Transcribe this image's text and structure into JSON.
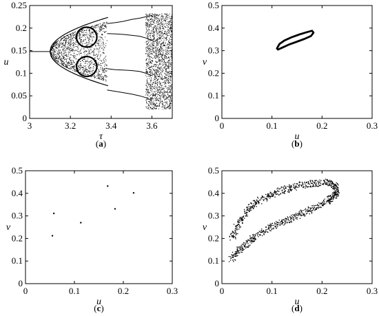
{
  "chart_data": [
    {
      "id": "a",
      "type": "scatter",
      "caption_prefix": "(",
      "caption_letter": "a",
      "caption_suffix": ")",
      "xlabel": "τ",
      "ylabel": "u",
      "xlim": [
        3,
        3.7
      ],
      "ylim": [
        0,
        0.25
      ],
      "xticks": [
        3,
        3.2,
        3.4,
        3.6
      ],
      "yticks": [
        0,
        0.05,
        0.1,
        0.15,
        0.2,
        0.25
      ],
      "xtick_labels": [
        "3",
        "3.2",
        "3.4",
        "3.6"
      ],
      "ytick_labels": [
        "0",
        "0.05",
        "0.1",
        "0.15",
        "0.2",
        "0.25"
      ],
      "description_series": {
        "steady_state": {
          "x": [
            3.0,
            3.1
          ],
          "u": 0.148
        },
        "branches": [
          {
            "x": [
              3.38,
              3.42,
              3.46,
              3.5,
              3.54,
              3.57,
              3.6
            ],
            "u": [
              0.21,
              0.212,
              0.215,
              0.219,
              0.222,
              0.225,
              0.228
            ]
          },
          {
            "x": [
              3.38,
              3.42,
              3.46,
              3.5,
              3.54,
              3.57,
              3.6
            ],
            "u": [
              0.188,
              0.187,
              0.186,
              0.184,
              0.182,
              0.178,
              0.172
            ]
          },
          {
            "x": [
              3.38,
              3.42,
              3.46,
              3.5,
              3.54,
              3.57,
              3.6
            ],
            "u": [
              0.11,
              0.108,
              0.107,
              0.106,
              0.104,
              0.1,
              0.095
            ]
          },
          {
            "x": [
              3.38,
              3.42,
              3.46,
              3.5,
              3.54,
              3.57,
              3.6
            ],
            "u": [
              0.063,
              0.06,
              0.057,
              0.054,
              0.05,
              0.046,
              0.04
            ]
          }
        ],
        "chaotic_band": {
          "x": [
            3.57,
            3.7
          ],
          "u": [
            0.02,
            0.232
          ]
        }
      }
    },
    {
      "id": "b",
      "type": "line",
      "caption_prefix": "(",
      "caption_letter": "b",
      "caption_suffix": ")",
      "xlabel": "u",
      "ylabel": "v",
      "xlim": [
        0,
        0.3
      ],
      "ylim": [
        0,
        0.5
      ],
      "xticks": [
        0,
        0.1,
        0.2,
        0.3
      ],
      "yticks": [
        0,
        0.1,
        0.2,
        0.3,
        0.4,
        0.5
      ],
      "xtick_labels": [
        "0",
        "0.1",
        "0.2",
        "0.3"
      ],
      "ytick_labels": [
        "0",
        "0.1",
        "0.2",
        "0.3",
        "0.4",
        "0.5"
      ],
      "x": [
        0.11,
        0.115,
        0.125,
        0.14,
        0.155,
        0.17,
        0.18,
        0.183,
        0.178,
        0.165,
        0.15,
        0.135,
        0.122,
        0.112,
        0.11
      ],
      "y": [
        0.31,
        0.33,
        0.345,
        0.36,
        0.372,
        0.382,
        0.388,
        0.38,
        0.365,
        0.352,
        0.34,
        0.328,
        0.315,
        0.305,
        0.31
      ]
    },
    {
      "id": "c",
      "type": "scatter",
      "caption_prefix": "(",
      "caption_letter": "c",
      "caption_suffix": ")",
      "xlabel": "u",
      "ylabel": "v",
      "xlim": [
        0,
        0.3
      ],
      "ylim": [
        0,
        0.5
      ],
      "xticks": [
        0,
        0.1,
        0.2,
        0.3
      ],
      "yticks": [
        0,
        0.1,
        0.2,
        0.3,
        0.4,
        0.5
      ],
      "xtick_labels": [
        "0",
        "0.1",
        "0.2",
        "0.3"
      ],
      "ytick_labels": [
        "0",
        "0.1",
        "0.2",
        "0.3",
        "0.4",
        "0.5"
      ],
      "x": [
        0.055,
        0.058,
        0.113,
        0.168,
        0.183,
        0.221
      ],
      "y": [
        0.212,
        0.311,
        0.27,
        0.432,
        0.331,
        0.402
      ]
    },
    {
      "id": "d",
      "type": "scatter",
      "caption_prefix": "(",
      "caption_letter": "d",
      "caption_suffix": ")",
      "xlabel": "u",
      "ylabel": "v",
      "xlim": [
        0,
        0.3
      ],
      "ylim": [
        0,
        0.5
      ],
      "xticks": [
        0,
        0.1,
        0.2,
        0.3
      ],
      "yticks": [
        0,
        0.1,
        0.2,
        0.3,
        0.4,
        0.5
      ],
      "xtick_labels": [
        "0",
        "0.1",
        "0.2",
        "0.3"
      ],
      "ytick_labels": [
        "0",
        "0.1",
        "0.2",
        "0.3",
        "0.4",
        "0.5"
      ],
      "attractor_upper": {
        "x": [
          0.02,
          0.03,
          0.04,
          0.055,
          0.07,
          0.09,
          0.11,
          0.13,
          0.15,
          0.17,
          0.19,
          0.21,
          0.225,
          0.23
        ],
        "y": [
          0.2,
          0.25,
          0.29,
          0.33,
          0.36,
          0.385,
          0.405,
          0.42,
          0.432,
          0.44,
          0.445,
          0.448,
          0.435,
          0.41
        ]
      },
      "attractor_lower": {
        "x": [
          0.02,
          0.03,
          0.045,
          0.06,
          0.08,
          0.1,
          0.12,
          0.14,
          0.16,
          0.18,
          0.2,
          0.215,
          0.225,
          0.23
        ],
        "y": [
          0.11,
          0.14,
          0.17,
          0.2,
          0.23,
          0.25,
          0.27,
          0.29,
          0.31,
          0.33,
          0.35,
          0.37,
          0.39,
          0.405
        ]
      }
    }
  ]
}
